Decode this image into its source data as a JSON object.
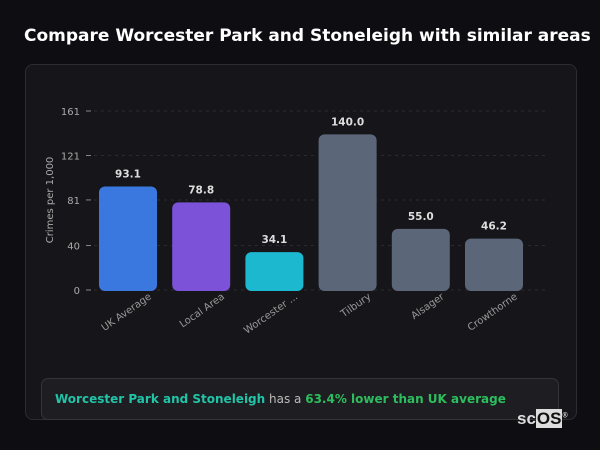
{
  "title": "Compare Worcester Park and Stoneleigh with similar areas",
  "chart_data": {
    "type": "bar",
    "ylabel": "Crimes per 1,000",
    "yticks": [
      0,
      40,
      81,
      121,
      161
    ],
    "ylim": [
      0,
      161
    ],
    "grid": true,
    "categories": [
      "UK Average",
      "Local Area",
      "Worcester ...",
      "Tilbury",
      "Alsager",
      "Crowthorne"
    ],
    "values": [
      93.1,
      78.8,
      34.1,
      140.0,
      55.0,
      46.2
    ],
    "value_labels": [
      "93.1",
      "78.8",
      "34.1",
      "140.0",
      "55.0",
      "46.2"
    ],
    "colors": [
      "#3a78e0",
      "#7b52d8",
      "#1cb8d0",
      "#5c6679",
      "#5c6679",
      "#5c6679"
    ]
  },
  "callout": {
    "area": "Worcester Park and Stoneleigh",
    "middle": " has a ",
    "stat": "63.4% lower than UK average"
  },
  "logo": {
    "text1": "sc",
    "text2": "OS",
    "mark": "®"
  }
}
